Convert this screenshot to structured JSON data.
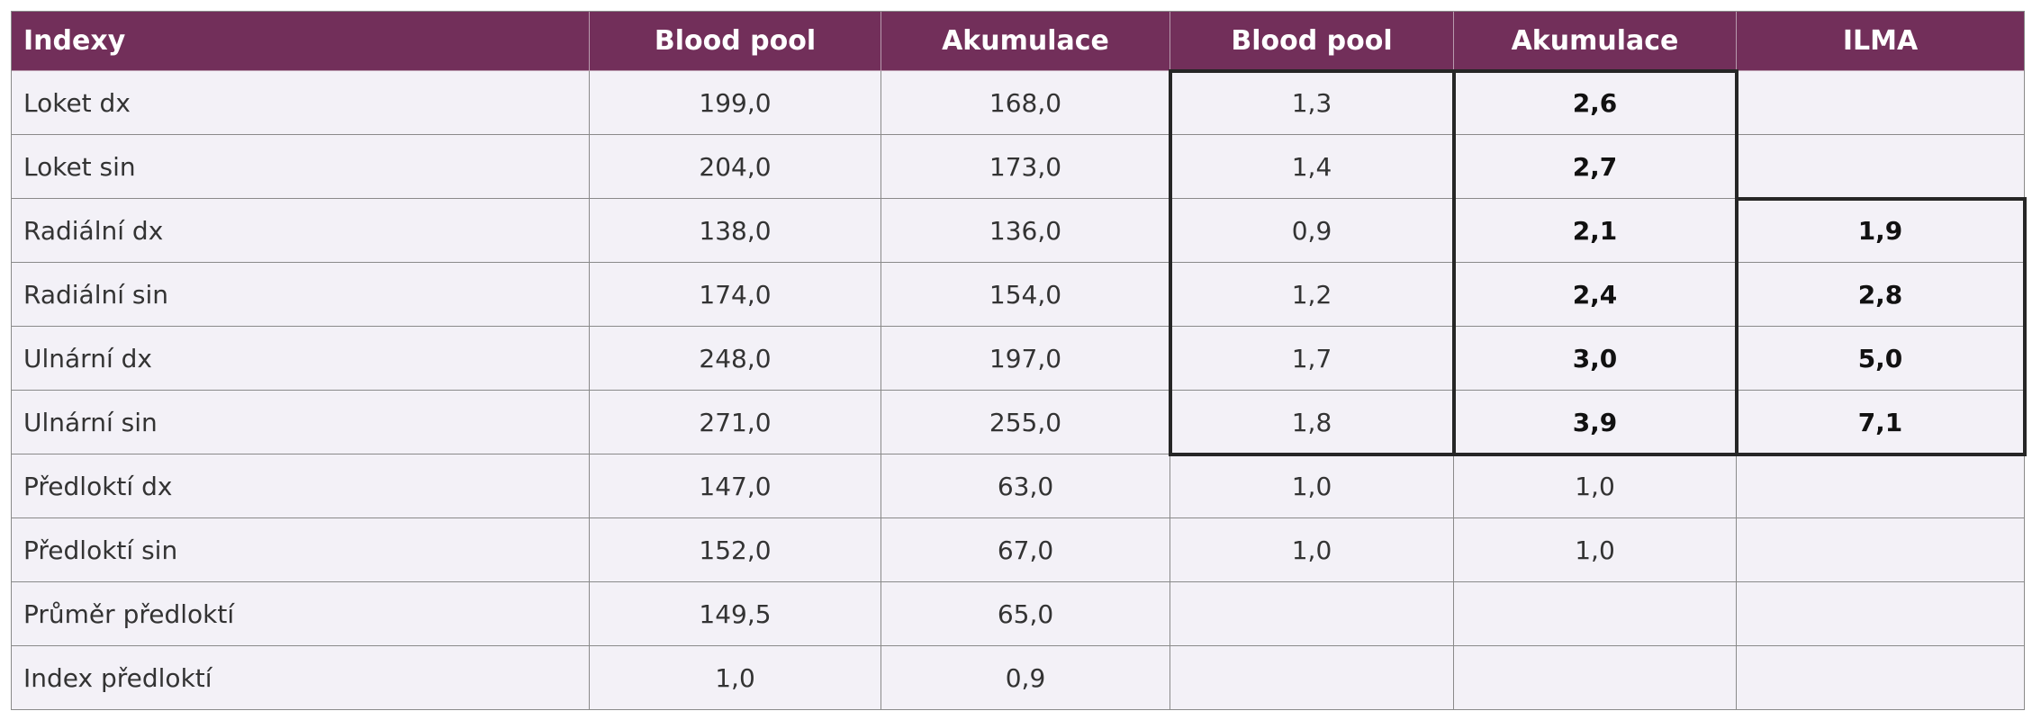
{
  "table": {
    "header": [
      "Indexy",
      "Blood pool",
      "Akumulace",
      "Blood pool",
      "Akumulace",
      "ILMA"
    ],
    "rows": [
      [
        "Loket dx",
        "199,0",
        "168,0",
        "1,3",
        "2,6",
        null
      ],
      [
        "Loket sin",
        "204,0",
        "173,0",
        "1,4",
        "2,7",
        null
      ],
      [
        "Radiální dx",
        "138,0",
        "136,0",
        "0,9",
        "2,1",
        "1,9"
      ],
      [
        "Radiální sin",
        "174,0",
        "154,0",
        "1,2",
        "2,4",
        "2,8"
      ],
      [
        "Ulnární dx",
        "248,0",
        "197,0",
        "1,7",
        "3,0",
        "5,0"
      ],
      [
        "Ulnární sin",
        "271,0",
        "255,0",
        "1,8",
        "3,9",
        "7,1"
      ],
      [
        "Předloktí dx",
        "147,0",
        "63,0",
        "1,0",
        "1,0",
        null
      ],
      [
        "Předloktí sin",
        "152,0",
        "67,0",
        "1,0",
        "1,0",
        null
      ],
      [
        "Průměr předloktí",
        "149,5",
        "65,0",
        null,
        null,
        null
      ],
      [
        "Index předloktí",
        "1,0",
        "0,9",
        null,
        null,
        null
      ]
    ]
  }
}
